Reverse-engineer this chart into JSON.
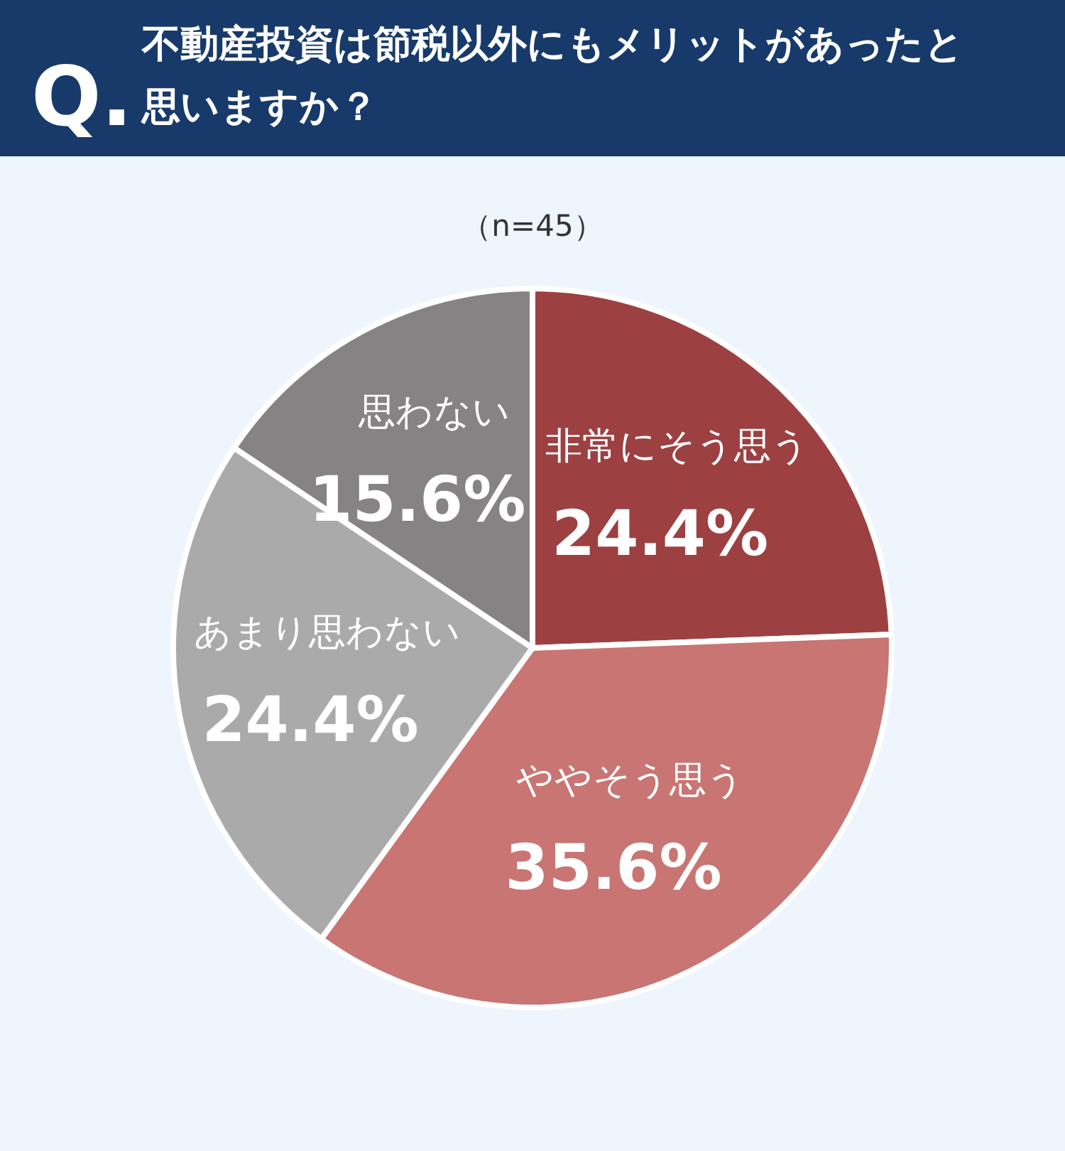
{
  "chart_data": {
    "type": "pie",
    "title": "不動産投資は節税以外にもメリットがあったと思いますか？",
    "subtitle": "（n=45）",
    "annotations": [
      "Q."
    ],
    "categories": [
      "非常にそう思う",
      "ややそう思う",
      "あまり思わない",
      "思わない"
    ],
    "values": [
      24.4,
      35.6,
      24.4,
      15.6
    ],
    "colors": [
      "#9d4042",
      "#c87573",
      "#abaaab",
      "#858384"
    ],
    "value_labels": [
      "24.4%",
      "35.6%",
      "24.4%",
      "15.6%"
    ]
  }
}
